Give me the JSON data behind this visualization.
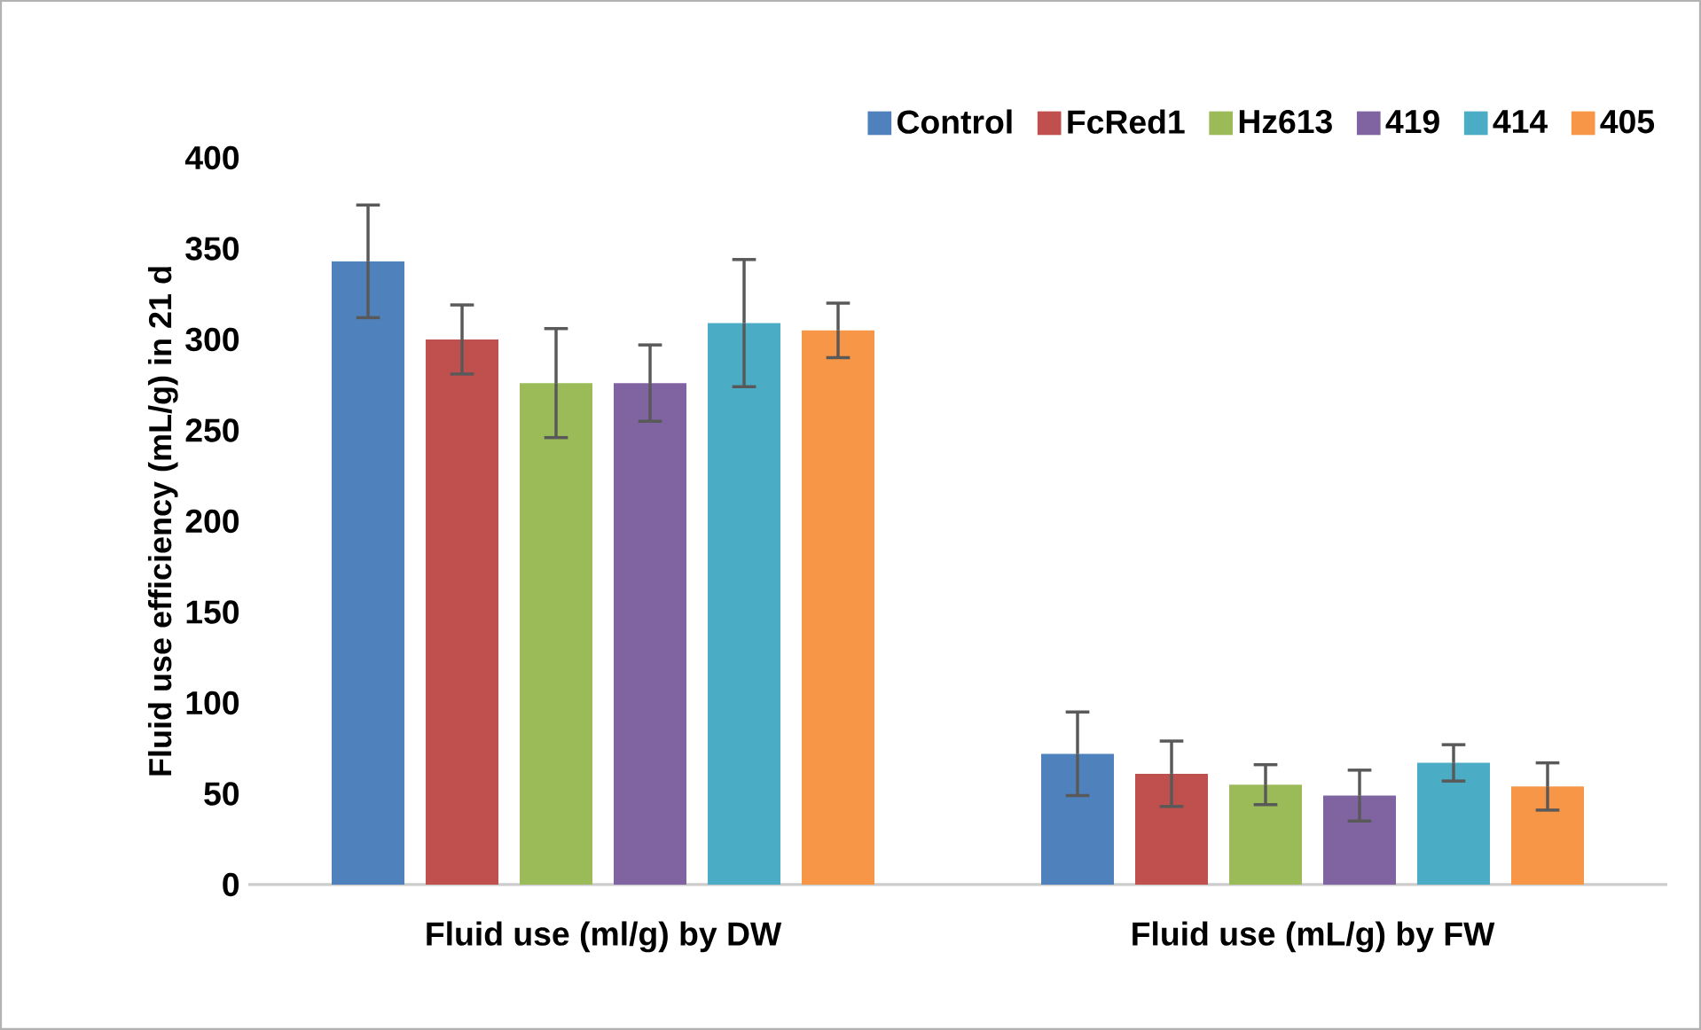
{
  "chart_data": {
    "type": "bar",
    "ylabel": "Fluid use efficiency (mL/g) in 21 d",
    "categories": [
      "Fluid use (ml/g) by DW",
      "Fluid use (mL/g) by FW"
    ],
    "series": [
      {
        "name": "Control",
        "color": "#4f81bd",
        "values": [
          343,
          72
        ],
        "errors": [
          31,
          23
        ]
      },
      {
        "name": "FcRed1",
        "color": "#c0504d",
        "values": [
          300,
          61
        ],
        "errors": [
          19,
          18
        ]
      },
      {
        "name": "Hz613",
        "color": "#9bbb59",
        "values": [
          276,
          55
        ],
        "errors": [
          30,
          11
        ]
      },
      {
        "name": "419",
        "color": "#8064a2",
        "values": [
          276,
          49
        ],
        "errors": [
          21,
          14
        ]
      },
      {
        "name": "414",
        "color": "#4bacc6",
        "values": [
          309,
          67
        ],
        "errors": [
          35,
          10
        ]
      },
      {
        "name": "405",
        "color": "#f79646",
        "values": [
          305,
          54
        ],
        "errors": [
          15,
          13
        ]
      }
    ],
    "ylim": [
      0,
      400
    ],
    "yticks": [
      0,
      50,
      100,
      150,
      200,
      250,
      300,
      350,
      400
    ],
    "grid": false,
    "legend": "top right"
  }
}
